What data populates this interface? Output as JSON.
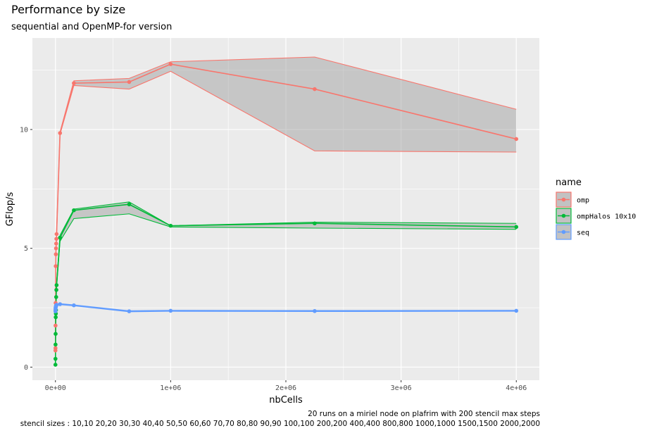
{
  "chart_data": {
    "type": "line",
    "title": "Performance by size",
    "subtitle": "sequential and OpenMP-for version",
    "xlabel": "nbCells",
    "ylabel": "GFlop/s",
    "xlim": [
      -200000,
      4200000
    ],
    "ylim": [
      -0.55,
      13.85
    ],
    "x_ticks": [
      0,
      1000000,
      2000000,
      3000000,
      4000000
    ],
    "x_tick_labels": [
      "0e+00",
      "1e+06",
      "2e+06",
      "3e+06",
      "4e+06"
    ],
    "y_ticks": [
      0,
      5,
      10
    ],
    "y_tick_labels": [
      "0",
      "5",
      "10"
    ],
    "grid": true,
    "legend": {
      "title": "name",
      "position": "right"
    },
    "caption": [
      "20 runs on a miriel node on plafrim with 200 stencil max steps",
      "stencil sizes : 10,10 20,20 30,30 40,40 50,50 60,60 70,70 80,80 90,90 100,100 200,200 400,400 800,800 1000,1000 1500,1500 2000,2000"
    ],
    "series": [
      {
        "name": "omp",
        "color": "#F8766D",
        "x": [
          100,
          400,
          900,
          1600,
          2500,
          3600,
          4900,
          6400,
          8100,
          10000,
          40000,
          160000,
          640000,
          1000000,
          2250000,
          4000000
        ],
        "y": [
          0.7,
          0.8,
          1.75,
          2.7,
          4.25,
          4.75,
          5.0,
          5.2,
          5.4,
          5.6,
          9.85,
          11.95,
          12.0,
          12.75,
          11.7,
          9.6
        ],
        "ymin": [
          0.6,
          0.7,
          1.6,
          2.6,
          4.1,
          4.6,
          4.9,
          5.1,
          5.3,
          5.5,
          9.8,
          11.85,
          11.7,
          12.45,
          9.1,
          9.05
        ],
        "ymax": [
          0.8,
          0.9,
          1.9,
          2.8,
          4.4,
          4.9,
          5.1,
          5.3,
          5.5,
          5.7,
          9.9,
          12.05,
          12.15,
          12.85,
          13.05,
          10.85
        ]
      },
      {
        "name": "ompHalos 10x10",
        "color": "#00BA38",
        "x": [
          100,
          400,
          900,
          1600,
          2500,
          3600,
          4900,
          6400,
          8100,
          10000,
          40000,
          160000,
          640000,
          1000000,
          2250000,
          4000000
        ],
        "y": [
          0.1,
          0.35,
          0.95,
          1.4,
          2.1,
          2.25,
          2.4,
          2.95,
          3.25,
          3.45,
          5.45,
          6.6,
          6.85,
          5.95,
          6.05,
          5.9
        ],
        "ymin": [
          0.05,
          0.3,
          0.9,
          1.3,
          2.0,
          2.15,
          2.3,
          2.85,
          3.15,
          3.35,
          5.3,
          6.25,
          6.45,
          5.9,
          5.85,
          5.8
        ],
        "ymax": [
          0.15,
          0.4,
          1.0,
          1.5,
          2.2,
          2.35,
          2.5,
          3.05,
          3.35,
          3.55,
          5.55,
          6.65,
          6.95,
          5.95,
          6.1,
          6.05
        ]
      },
      {
        "name": "seq",
        "color": "#619CFF",
        "x": [
          100,
          400,
          900,
          1600,
          2500,
          3600,
          4900,
          6400,
          8100,
          10000,
          40000,
          160000,
          640000,
          1000000,
          2250000,
          4000000
        ],
        "y": [
          2.35,
          2.4,
          2.45,
          2.5,
          2.52,
          2.55,
          2.58,
          2.6,
          2.6,
          2.62,
          2.65,
          2.6,
          2.35,
          2.37,
          2.36,
          2.37
        ],
        "ymin": [
          2.33,
          2.38,
          2.43,
          2.48,
          2.5,
          2.53,
          2.56,
          2.58,
          2.58,
          2.6,
          2.63,
          2.58,
          2.33,
          2.35,
          2.34,
          2.35
        ],
        "ymax": [
          2.37,
          2.42,
          2.47,
          2.52,
          2.54,
          2.57,
          2.6,
          2.62,
          2.62,
          2.64,
          2.67,
          2.62,
          2.37,
          2.39,
          2.38,
          2.39
        ]
      }
    ]
  }
}
